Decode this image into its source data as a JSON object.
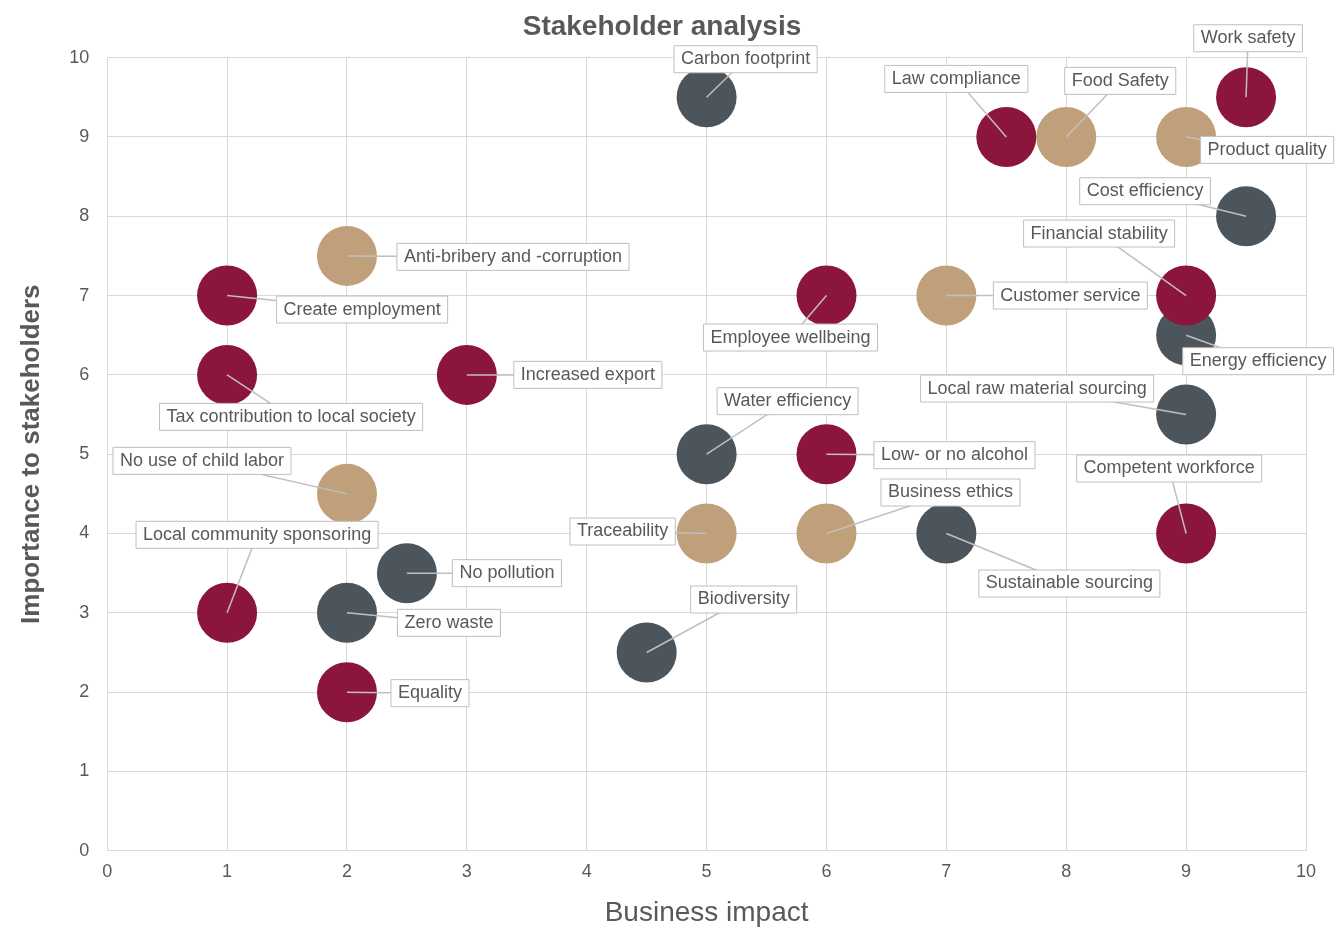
{
  "chart_data": {
    "type": "scatter",
    "title": "Stakeholder analysis",
    "xlabel": "Business impact",
    "ylabel": "Importance to stakeholders",
    "xlim": [
      0,
      10
    ],
    "xticks": [
      0,
      1,
      2,
      3,
      4,
      5,
      6,
      7,
      8,
      9,
      10
    ],
    "ylim": [
      0,
      10
    ],
    "yticks": [
      0,
      1,
      2,
      3,
      4,
      5,
      6,
      7,
      8,
      9,
      10
    ],
    "grid": true,
    "legend": false,
    "marker": "circle",
    "series": [
      {
        "color": "#8b153b",
        "x": [
          9.5,
          7.5,
          9,
          6,
          1,
          1,
          3,
          6,
          9,
          1,
          2
        ],
        "values": [
          9.5,
          9,
          7,
          7,
          7,
          6,
          6,
          5,
          4,
          3,
          2
        ]
      },
      {
        "color": "#c0a07a",
        "x": [
          8,
          9,
          2,
          7,
          2,
          5,
          6
        ],
        "values": [
          9,
          9,
          7.5,
          7,
          4.5,
          4,
          4
        ]
      },
      {
        "color": "#4d555c",
        "x": [
          5,
          9.5,
          9,
          9,
          5,
          7,
          2.5,
          2,
          4.5
        ],
        "values": [
          9.5,
          8,
          6.5,
          5.5,
          5,
          4,
          3.5,
          3,
          2.5
        ]
      }
    ],
    "annotations": [
      {
        "text": "Work safety",
        "x": 9.5,
        "y": 9.5
      },
      {
        "text": "Law compliance",
        "x": 7.5,
        "y": 9
      },
      {
        "text": "Financial stability",
        "x": 9,
        "y": 7
      },
      {
        "text": "Employee wellbeing",
        "x": 6,
        "y": 7
      },
      {
        "text": "Create employment",
        "x": 1,
        "y": 7
      },
      {
        "text": "Tax contribution to local society",
        "x": 1,
        "y": 6
      },
      {
        "text": "Increased export",
        "x": 3,
        "y": 6
      },
      {
        "text": "Low- or no alcohol",
        "x": 6,
        "y": 5
      },
      {
        "text": "Competent workforce",
        "x": 9,
        "y": 4
      },
      {
        "text": "Local community sponsoring",
        "x": 1,
        "y": 3
      },
      {
        "text": "Equality",
        "x": 2,
        "y": 2
      },
      {
        "text": "Food Safety",
        "x": 8,
        "y": 9
      },
      {
        "text": "Product quality",
        "x": 9,
        "y": 9
      },
      {
        "text": "Anti-bribery and -corruption",
        "x": 2,
        "y": 7.5
      },
      {
        "text": "Customer service",
        "x": 7,
        "y": 7
      },
      {
        "text": "No use of child labor",
        "x": 2,
        "y": 4.5
      },
      {
        "text": "Traceability",
        "x": 5,
        "y": 4
      },
      {
        "text": "Business ethics",
        "x": 6,
        "y": 4
      },
      {
        "text": "Carbon footprint",
        "x": 5,
        "y": 9.5
      },
      {
        "text": "Cost efficiency",
        "x": 9.5,
        "y": 8
      },
      {
        "text": "Energy efficiency",
        "x": 9,
        "y": 6.5
      },
      {
        "text": "Local raw material sourcing",
        "x": 9,
        "y": 5.5
      },
      {
        "text": "Water efficiency",
        "x": 5,
        "y": 5
      },
      {
        "text": "Sustainable sourcing",
        "x": 7,
        "y": 4
      },
      {
        "text": "No pollution",
        "x": 2.5,
        "y": 3.5
      },
      {
        "text": "Zero waste",
        "x": 2,
        "y": 3
      },
      {
        "text": "Biodiversity",
        "x": 4.5,
        "y": 2.5
      }
    ]
  }
}
